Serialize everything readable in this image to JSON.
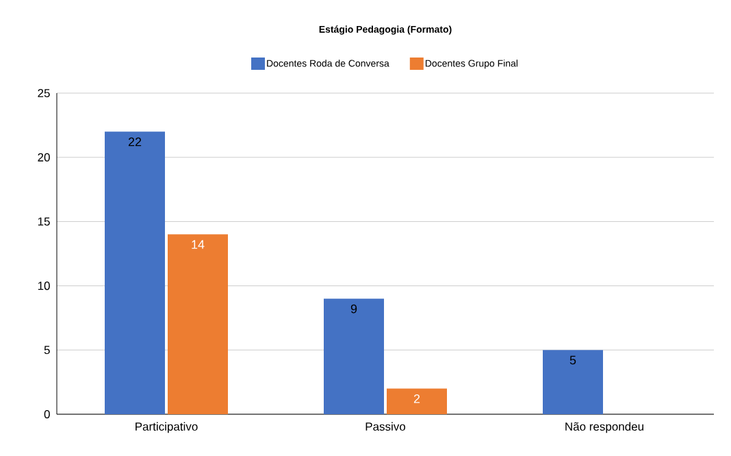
{
  "chart_data": {
    "type": "bar",
    "title": "Estágio Pedagogia (Formato)",
    "categories": [
      "Participativo",
      "Passivo",
      "Não respondeu"
    ],
    "series": [
      {
        "name": "Docentes Roda de Conversa",
        "color": "#4472c4",
        "values": [
          22,
          9,
          5
        ]
      },
      {
        "name": "Docentes Grupo Final",
        "color": "#ed7d31",
        "values": [
          14,
          2,
          null
        ]
      }
    ],
    "ylim": [
      0,
      25
    ],
    "yticks": [
      0,
      5,
      10,
      15,
      20,
      25
    ],
    "grid": "y",
    "legend": "top",
    "data_labels": true
  }
}
